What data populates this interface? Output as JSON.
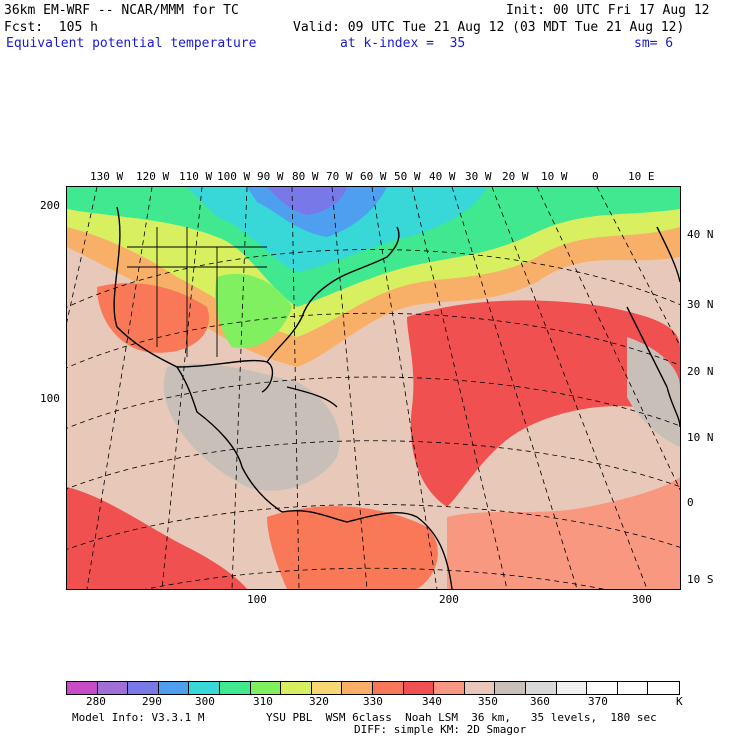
{
  "header": {
    "model": "36km EM-WRF -- NCAR/MMM for TC",
    "init": "Init: 00 UTC Fri 17 Aug 12",
    "forecast": "Fcst:  105 h",
    "valid": "Valid: 09 UTC Tue 21 Aug 12 (03 MDT Tue 21 Aug 12)",
    "field": "Equivalent potential temperature",
    "level": "at k-index =  35",
    "smoothing": "sm= 6"
  },
  "map": {
    "lon_labels": [
      "130 W",
      "120 W",
      "110 W",
      "100 W",
      "90 W",
      "80 W",
      "70 W",
      "60 W",
      "50 W",
      "40 W",
      "30 W",
      "20 W",
      "10 W",
      "0",
      "10 E"
    ],
    "lat_labels": [
      "40 N",
      "30 N",
      "20 N",
      "10 N",
      "0",
      "10 S"
    ],
    "grid_y_labels": [
      "200",
      "100"
    ],
    "grid_x_labels": [
      "100",
      "200",
      "300"
    ]
  },
  "colorbar": {
    "colors": [
      "#c84bc8",
      "#a070d8",
      "#7878e8",
      "#4e9ff0",
      "#38d8d8",
      "#40e890",
      "#80f060",
      "#d8f060",
      "#f8d870",
      "#f8b068",
      "#f87858",
      "#f05050",
      "#f89880",
      "#e8c8b8",
      "#c8c0b8",
      "#d8d8d8",
      "#f0f0f0",
      "#ffffff",
      "#ffffff",
      "#ffffff"
    ],
    "labels": [
      "280",
      "290",
      "300",
      "310",
      "320",
      "330",
      "340",
      "350",
      "360",
      "370"
    ],
    "unit": "K"
  },
  "footer": {
    "model_info": "Model Info: V3.3.1 M",
    "physics_line1": "YSU PBL  WSM 6class  Noah LSM  36 km,   35 levels,  180 sec",
    "physics_line2": "DIFF: simple KM: 2D Smagor"
  }
}
